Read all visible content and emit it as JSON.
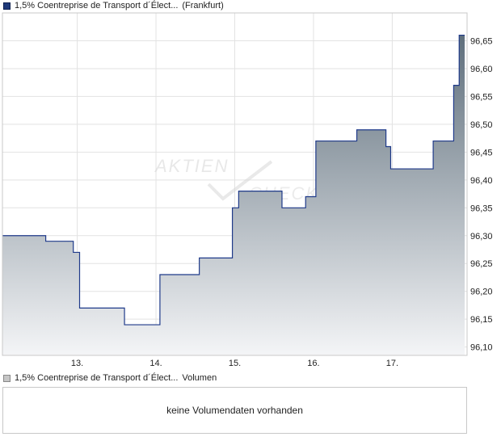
{
  "price_legend": {
    "name": "1,5% Coentreprise de Transport d´Élect...",
    "exchange": "(Frankfurt)"
  },
  "volume_legend": {
    "name": "1,5% Coentreprise de Transport d´Élect...",
    "label": "Volumen"
  },
  "volume_panel": {
    "message": "keine Volumendaten vorhanden"
  },
  "watermark": {
    "line1": "AKTIEN",
    "line2": "CHECK"
  },
  "colors": {
    "line": "#1f3a8a",
    "fill_top": "#5f6f7c",
    "fill_bottom": "#f4f5f7",
    "grid": "#e2e2e2",
    "frame": "#c8c8c8"
  },
  "chart_data": {
    "type": "area",
    "step": true,
    "xlabel": "",
    "ylabel": "",
    "x_ticks": [
      "13.",
      "14.",
      "15.",
      "16.",
      "17."
    ],
    "y_ticks": [
      "96,10",
      "96,15",
      "96,20",
      "96,25",
      "96,30",
      "96,35",
      "96,40",
      "96,45",
      "96,50",
      "96,55",
      "96,60",
      "96,65"
    ],
    "ylim": [
      96.085,
      96.7
    ],
    "xlim": [
      12.05,
      17.95
    ],
    "grid": true,
    "series": [
      {
        "x": [
          12.05,
          12.6,
          12.95,
          13.03,
          13.6,
          14.05,
          14.55,
          14.97,
          15.05,
          15.6,
          15.9,
          16.03,
          16.55,
          16.92,
          16.98,
          17.52,
          17.78,
          17.85,
          17.92
        ],
        "values": [
          96.3,
          96.29,
          96.27,
          96.17,
          96.14,
          96.23,
          96.26,
          96.35,
          96.38,
          96.35,
          96.37,
          96.47,
          96.49,
          96.46,
          96.42,
          96.47,
          96.57,
          96.66,
          96.66
        ]
      }
    ]
  }
}
